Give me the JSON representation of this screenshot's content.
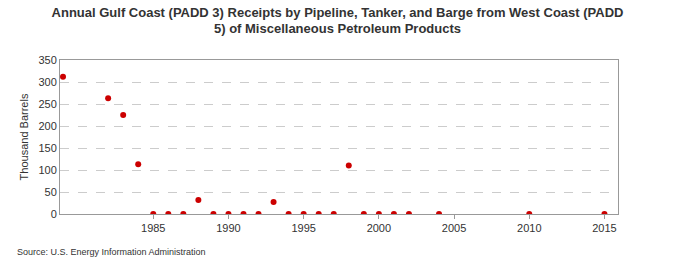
{
  "chart_data": {
    "type": "scatter",
    "title": "Annual Gulf Coast (PADD 3) Receipts by Pipeline, Tanker, and Barge from West Coast (PADD\n5) of Miscellaneous Petroleum Products",
    "y_label": "Thousand Barrels",
    "source": "Source: U.S. Energy Information Administration",
    "x": [
      1979,
      1982,
      1983,
      1984,
      1985,
      1986,
      1987,
      1988,
      1989,
      1990,
      1991,
      1992,
      1993,
      1994,
      1995,
      1996,
      1997,
      1998,
      1999,
      2000,
      2001,
      2002,
      2004,
      2010,
      2015
    ],
    "values": [
      312,
      263,
      225,
      113,
      0,
      0,
      0,
      32,
      0,
      0,
      0,
      0,
      27,
      0,
      0,
      0,
      0,
      110,
      0,
      0,
      0,
      0,
      0,
      0,
      0
    ],
    "color": "#cc0000",
    "marker": "circle",
    "xlim": [
      1978.8,
      2015.9
    ],
    "xticks": [
      1985,
      1990,
      1995,
      2000,
      2005,
      2010,
      2015
    ],
    "ylim": [
      0,
      350
    ],
    "yticks": [
      0,
      50,
      100,
      150,
      200,
      250,
      300,
      350
    ],
    "grid": true
  }
}
